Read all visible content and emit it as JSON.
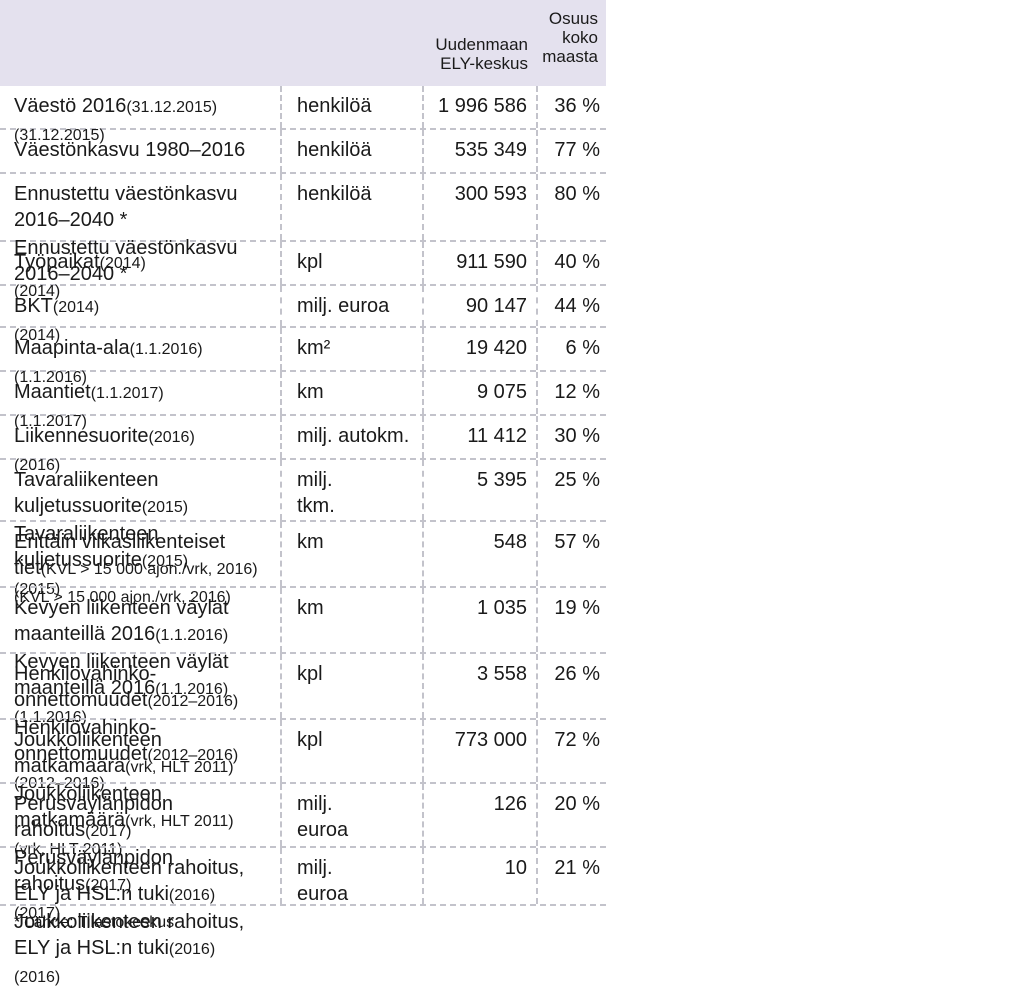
{
  "header": {
    "col3": "Uudenmaan ELY-keskus",
    "col4": "Osuus koko maasta"
  },
  "rows": [
    {
      "label": "Väestö 2016",
      "note": "(31.12.2015)",
      "unit": "henkilöä",
      "value": "1 996 586",
      "share": "36 %"
    },
    {
      "label": "Väestönkasvu 1980–2016",
      "note": "",
      "unit": "henkilöä",
      "value": "535 349",
      "share": "77 %"
    },
    {
      "label": "Ennustettu väestönkasvu 2016–2040 *",
      "note": "",
      "unit": "henkilöä",
      "value": "300 593",
      "share": "80 %"
    },
    {
      "label": "Työpaikat",
      "note": "(2014)",
      "unit": "kpl",
      "value": "911 590",
      "share": "40 %"
    },
    {
      "label": "BKT",
      "note": "(2014)",
      "unit": "milj. euroa",
      "value": "90 147",
      "share": "44 %"
    },
    {
      "label": "Maapinta-ala",
      "note": "(1.1.2016)",
      "unit": "km²",
      "value": "19 420",
      "share": "6 %"
    },
    {
      "label": "Maantiet",
      "note": "(1.1.2017)",
      "unit": "km",
      "value": "9 075",
      "share": "12 %"
    },
    {
      "label": "Liikennesuorite",
      "note": "(2016)",
      "unit": "milj. autokm.",
      "value": "11 412",
      "share": "30 %"
    },
    {
      "label": "Tavaraliikenteen kuljetussuorite",
      "note": "(2015)",
      "unit": "milj. tkm.",
      "value": "5 395",
      "share": "25 %"
    },
    {
      "label": "Erittäin vilkasliikenteiset tiet",
      "note": "(KVL > 15 000 ajon./vrk, 2016)",
      "unit": "km",
      "value": "548",
      "share": "57 %"
    },
    {
      "label": "Kevyen liikenteen väylät maanteillä 2016",
      "note": "(1.1.2016)",
      "unit": "km",
      "value": "1 035",
      "share": "19 %"
    },
    {
      "label": "Henkilövahinko- onnettomuudet",
      "note": "(2012–2016)",
      "unit": "kpl",
      "value": "3 558",
      "share": "26 %"
    },
    {
      "label": "Joukkoliikenteen matkamäärä",
      "note": "(vrk, HLT 2011)",
      "unit": "kpl",
      "value": "773 000",
      "share": "72 %"
    },
    {
      "label": "Perusväylänpidon rahoitus",
      "note": "(2017)",
      "unit": "milj. euroa",
      "value": "126",
      "share": "20 %"
    },
    {
      "label": "Joukkoliikenteen rahoitus, ELY ja HSL:n tuki",
      "note": "(2016)",
      "unit": "milj. euroa",
      "value": "10",
      "share": "21 %"
    }
  ],
  "footnote": "* Lähde: Tilastokeskus"
}
